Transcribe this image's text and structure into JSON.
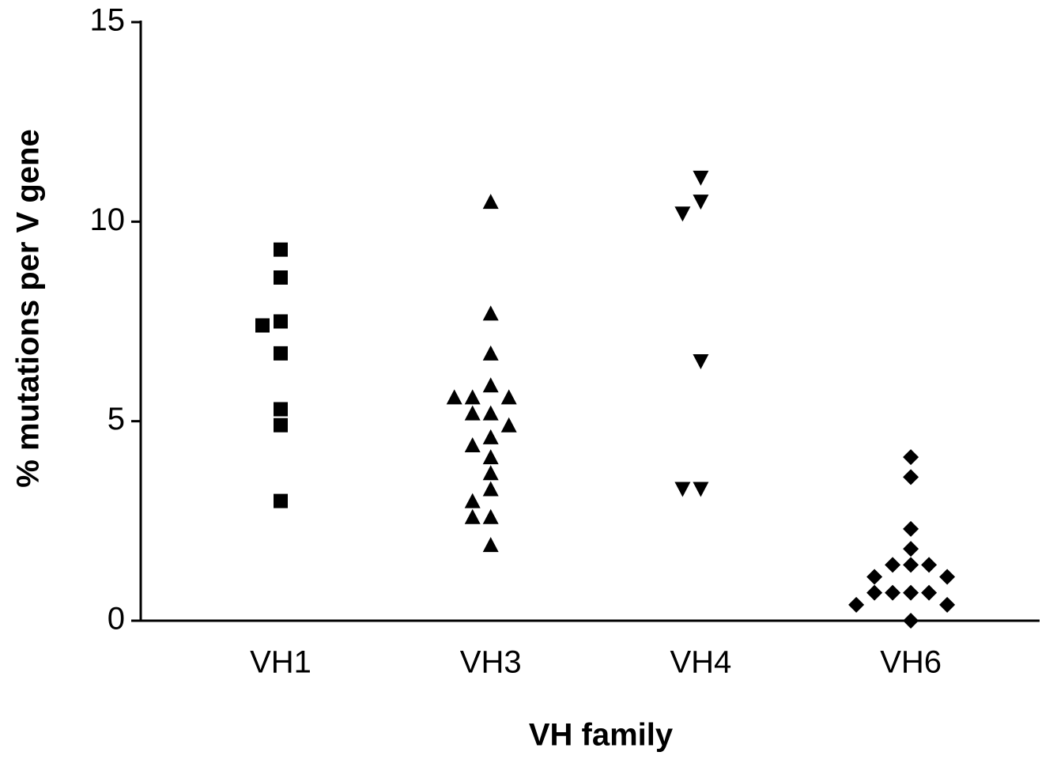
{
  "chart_data": {
    "type": "strip",
    "y_label": "% mutations per V gene",
    "x_label": "VH family",
    "categories": [
      "VH1",
      "VH3",
      "VH4",
      "VH6"
    ],
    "values": [
      [
        9.3,
        8.6,
        7.5,
        7.4,
        6.7,
        5.3,
        4.9,
        3.0
      ],
      [
        10.5,
        7.7,
        6.7,
        5.9,
        5.6,
        5.6,
        5.6,
        5.2,
        5.2,
        4.9,
        4.6,
        4.4,
        4.1,
        3.7,
        3.3,
        3.0,
        2.6,
        2.6,
        1.9
      ],
      [
        11.1,
        10.5,
        10.2,
        6.5,
        3.3,
        3.3
      ],
      [
        4.1,
        3.6,
        2.3,
        1.8,
        1.4,
        1.4,
        1.4,
        1.1,
        1.1,
        0.7,
        0.7,
        0.7,
        0.7,
        0.4,
        0.4,
        0
      ]
    ],
    "markers": [
      "square",
      "triangle-up",
      "triangle-down",
      "diamond"
    ],
    "color": "#000000",
    "ylim": [
      0,
      15
    ],
    "yticks": [
      0,
      5,
      10,
      15
    ],
    "grid": false
  }
}
